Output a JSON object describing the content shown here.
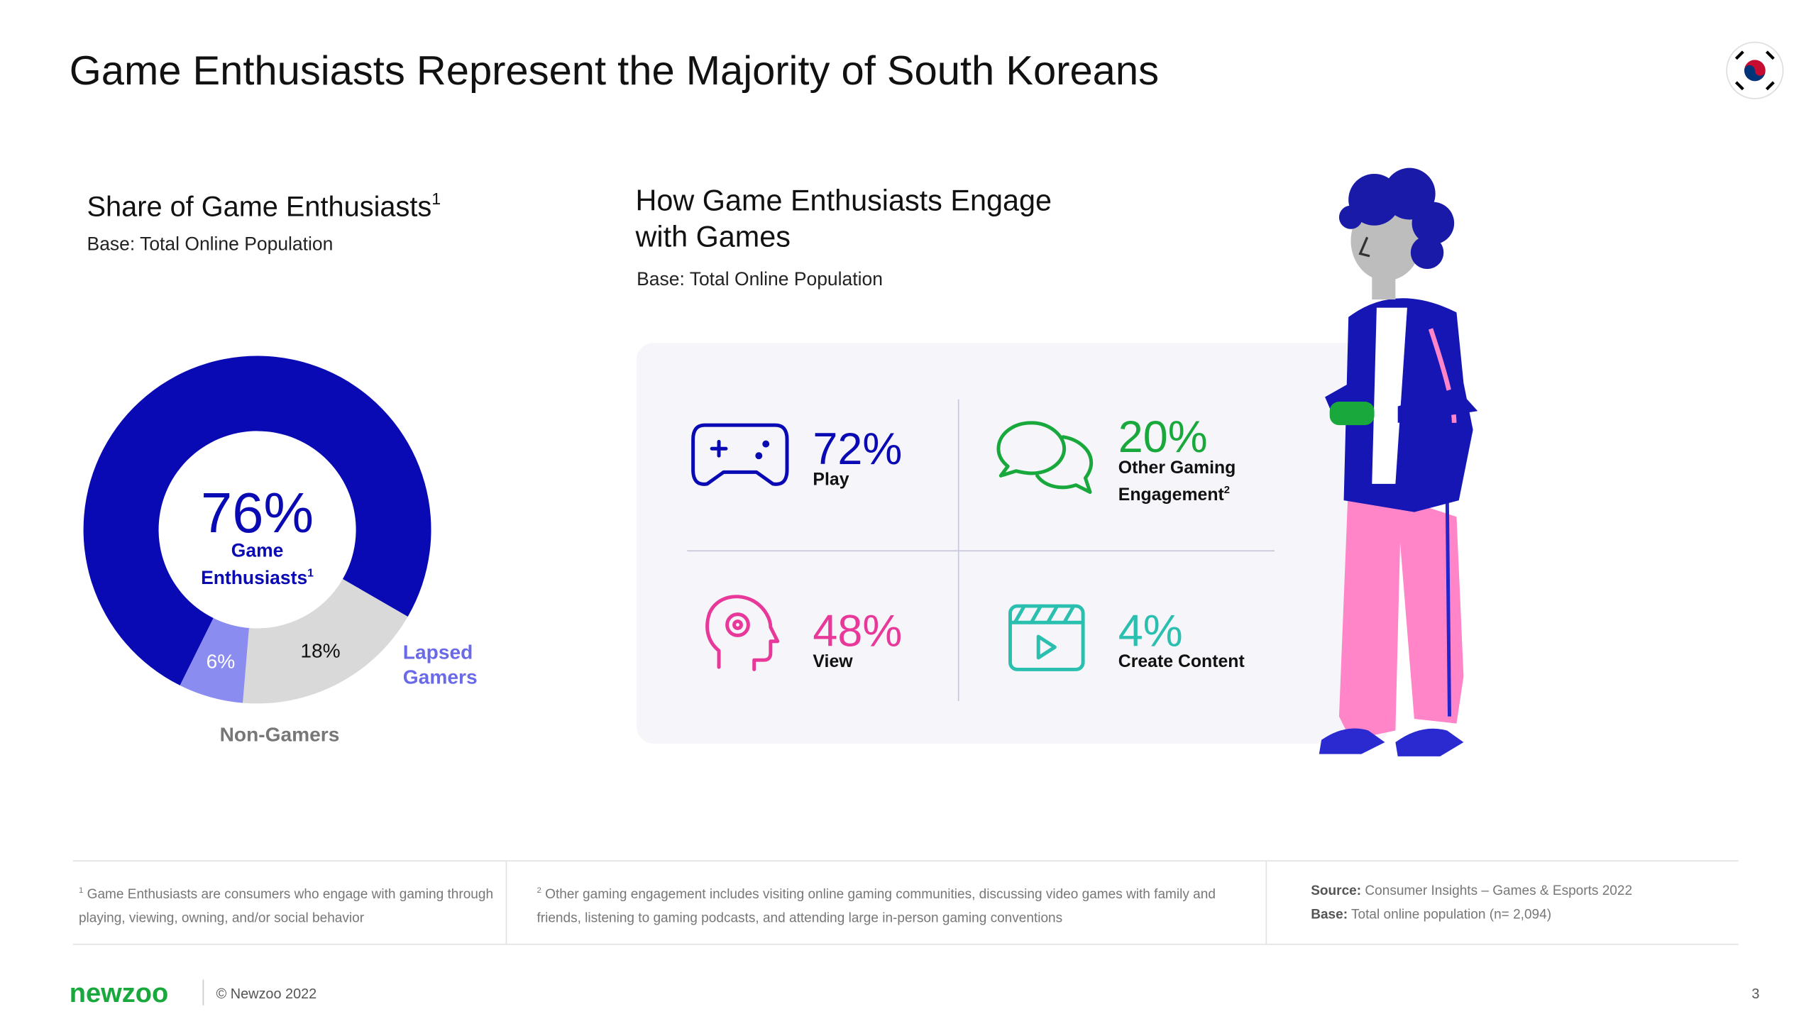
{
  "title": "Game Enthusiasts Represent the Majority of South Koreans",
  "chart_data": {
    "type": "pie",
    "donut": true,
    "title": "Share of Game Enthusiasts",
    "title_note": "1",
    "subtitle": "Base: Total Online Population",
    "categories": [
      "Game Enthusiasts",
      "Non-Gamers",
      "Lapsed Gamers"
    ],
    "category_note": "1",
    "values": [
      76,
      18,
      6
    ],
    "value_labels": [
      "76%",
      "18%",
      "6%"
    ],
    "colors": [
      "#0a0ab4",
      "#d9d9d9",
      "#8b8cf0"
    ],
    "label_colors": [
      "#0a0ab4",
      "#777777",
      "#6a6ae8"
    ]
  },
  "engagement": {
    "title": "How Game Enthusiasts Engage with Games",
    "base": "Base: Total Online Population",
    "items": [
      {
        "value": "72%",
        "label": "Play",
        "color": "#0a0ab4"
      },
      {
        "value": "20%",
        "label": "Other Gaming Engagement",
        "note": "2",
        "color": "#18a83c"
      },
      {
        "value": "48%",
        "label": "View",
        "color": "#e8399a"
      },
      {
        "value": "4%",
        "label": "Create Content",
        "color": "#2bbfb0"
      }
    ]
  },
  "footnotes": [
    {
      "mark": "1",
      "text": "Game Enthusiasts are consumers who engage with gaming through playing, viewing, owning, and/or social behavior"
    },
    {
      "mark": "2",
      "text": "Other gaming engagement includes visiting online gaming communities, discussing video games with family and friends, listening to gaming podcasts, and attending large in-person gaming conventions"
    },
    {
      "source_label": "Source:",
      "source": "Consumer Insights – Games & Esports 2022",
      "base_label": "Base:",
      "base": "Total online population (n= 2,094)"
    }
  ],
  "footer": {
    "brand": "newzoo",
    "copyright": "© Newzoo 2022",
    "page": "3"
  }
}
